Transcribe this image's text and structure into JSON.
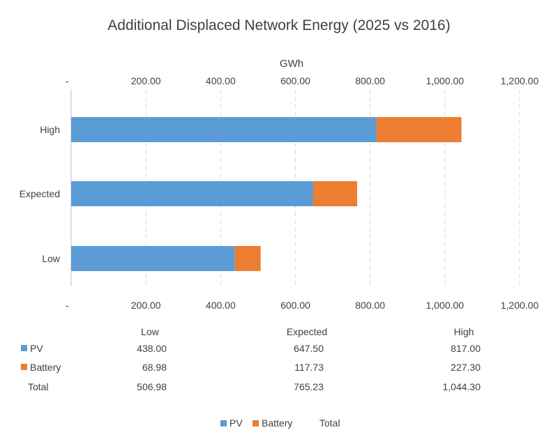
{
  "chart_data": {
    "type": "bar",
    "orientation": "horizontal",
    "stacked": true,
    "title": "Additional Displaced Network Energy (2025 vs 2016)",
    "unit_label": "GWh",
    "categories": [
      "Low",
      "Expected",
      "High"
    ],
    "series": [
      {
        "name": "PV",
        "color": "#5b9bd5",
        "values": [
          438.0,
          647.5,
          817.0
        ]
      },
      {
        "name": "Battery",
        "color": "#ed7d31",
        "values": [
          68.98,
          117.73,
          227.3
        ]
      }
    ],
    "totals": {
      "name": "Total",
      "values": [
        506.98,
        765.23,
        1044.3
      ]
    },
    "xlim": [
      0,
      1200
    ],
    "tick_labels": [
      "-",
      "200.00",
      "400.00",
      "600.00",
      "800.00",
      "1,000.00",
      "1,200.00"
    ],
    "table_values": {
      "PV": [
        "438.00",
        "647.50",
        "817.00"
      ],
      "Battery": [
        "68.98",
        "117.73",
        "227.30"
      ],
      "Total": [
        "506.98",
        "765.23",
        "1,044.30"
      ]
    },
    "grid": true,
    "legend_position": "bottom"
  }
}
